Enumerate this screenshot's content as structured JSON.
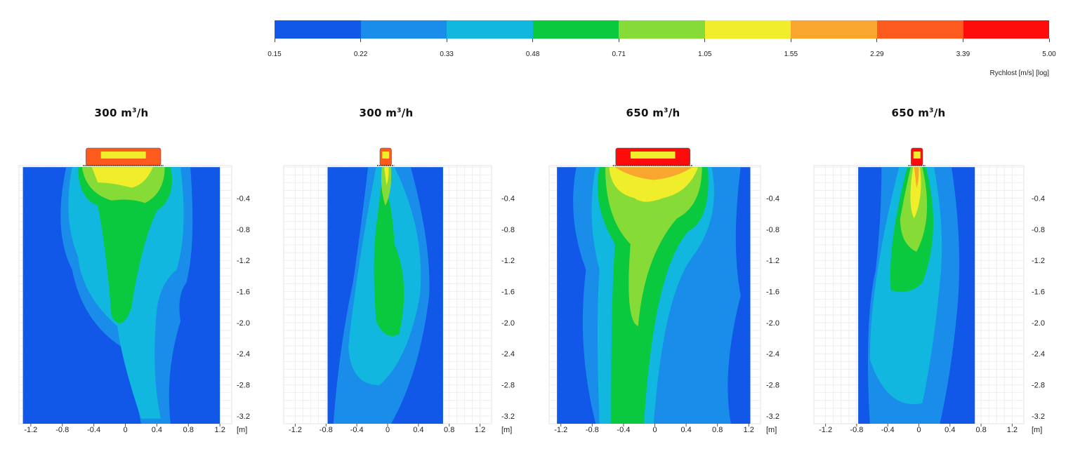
{
  "colorbar": {
    "title": "Rychlost [m/s] [log]",
    "tick_labels": [
      "0.15",
      "0.22",
      "0.33",
      "0.48",
      "0.71",
      "1.05",
      "1.55",
      "2.29",
      "3.39",
      "5.00"
    ],
    "colors": [
      "#1157e8",
      "#1a8cea",
      "#12b7df",
      "#0ac93e",
      "#86db37",
      "#f0ee2b",
      "#f8a62e",
      "#fd5a1e",
      "#fe0b0b"
    ]
  },
  "chart_data": [
    {
      "type": "heatmap",
      "title": "300 m³/h",
      "title_main": "300 m",
      "title_sup": "3",
      "title_tail": "/h",
      "x_unit": "[m]",
      "x_ticks": [
        "-1.2",
        "-0.8",
        "-0.4",
        "0",
        "0.4",
        "0.8",
        "1.2"
      ],
      "y_ticks": [
        "-0.4",
        "-0.8",
        "-1.2",
        "-1.6",
        "-2.0",
        "-2.4",
        "-2.8",
        "-3.2"
      ],
      "xlim": [
        -1.35,
        1.35
      ],
      "ylim": [
        -3.3,
        0.02
      ],
      "domain_x": [
        -1.3,
        1.2
      ],
      "diffuser_x": [
        -0.5,
        0.45
      ],
      "grid": true
    },
    {
      "type": "heatmap",
      "title": "300 m³/h",
      "title_main": "300 m",
      "title_sup": "3",
      "title_tail": "/h",
      "x_unit": "[m]",
      "x_ticks": [
        "-1.2",
        "-0.8",
        "-0.4",
        "0",
        "0.4",
        "0.8",
        "1.2"
      ],
      "y_ticks": [
        "-0.4",
        "-0.8",
        "-1.2",
        "-1.6",
        "-2.0",
        "-2.4",
        "-2.8",
        "-3.2"
      ],
      "xlim": [
        -1.35,
        1.35
      ],
      "ylim": [
        -3.3,
        0.02
      ],
      "domain_x": [
        -0.78,
        0.72
      ],
      "diffuser_x": [
        -0.1,
        0.05
      ],
      "grid": true
    },
    {
      "type": "heatmap",
      "title": "650 m³/h",
      "title_main": "650 m",
      "title_sup": "3",
      "title_tail": "/h",
      "x_unit": "[m]",
      "x_ticks": [
        "-1.2",
        "-0.8",
        "-0.4",
        "0",
        "0.4",
        "0.8",
        "1.2"
      ],
      "y_ticks": [
        "-0.4",
        "-0.8",
        "-1.2",
        "-1.6",
        "-2.0",
        "-2.4",
        "-2.8",
        "-3.2"
      ],
      "xlim": [
        -1.35,
        1.35
      ],
      "ylim": [
        -3.3,
        0.02
      ],
      "domain_x": [
        -1.25,
        1.22
      ],
      "diffuser_x": [
        -0.5,
        0.45
      ],
      "grid": true
    },
    {
      "type": "heatmap",
      "title": "650 m³/h",
      "title_main": "650 m",
      "title_sup": "3",
      "title_tail": "/h",
      "x_unit": "[m]",
      "x_ticks": [
        "-1.2",
        "-0.8",
        "-0.4",
        "0",
        "0.4",
        "0.8",
        "1.2"
      ],
      "y_ticks": [
        "-0.4",
        "-0.8",
        "-1.2",
        "-1.6",
        "-2.0",
        "-2.4",
        "-2.8",
        "-3.2"
      ],
      "xlim": [
        -1.35,
        1.35
      ],
      "ylim": [
        -3.3,
        0.02
      ],
      "domain_x": [
        -0.78,
        0.72
      ],
      "diffuser_x": [
        -0.1,
        0.05
      ],
      "grid": true
    }
  ]
}
